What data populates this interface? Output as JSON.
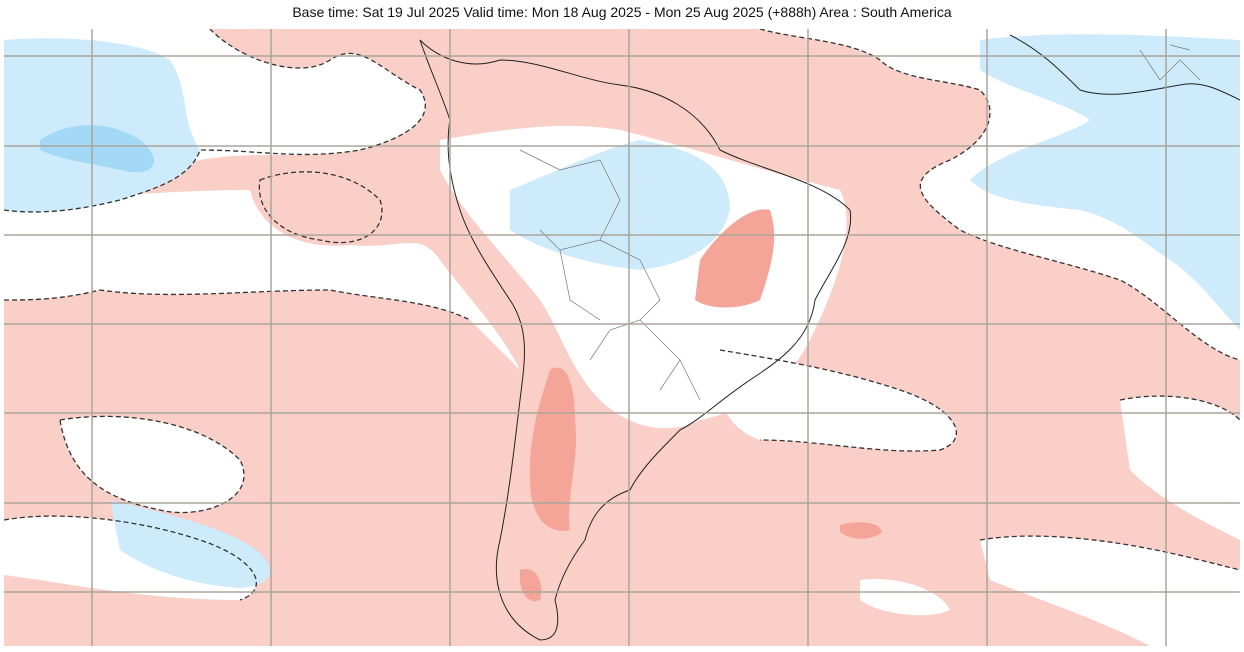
{
  "header": {
    "title": "Base time: Sat 19 Jul 2025 Valid time: Mon 18 Aug 2025 - Mon 25 Aug 2025 (+888h) Area : South America"
  }
}
